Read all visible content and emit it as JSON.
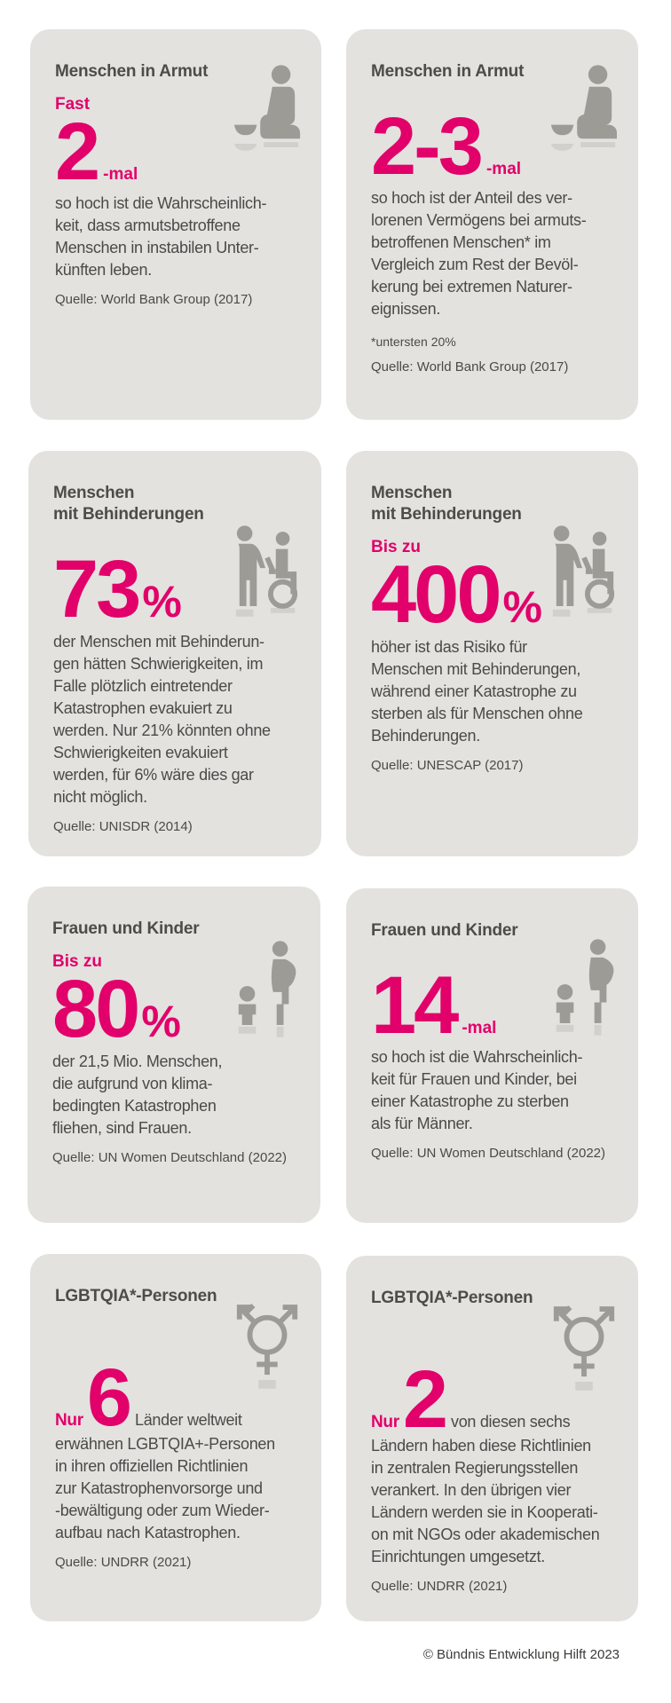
{
  "cards": [
    {
      "title": [
        "Menschen in Armut"
      ],
      "prefix": "Fast",
      "number": "2",
      "unit": "-mal",
      "body": [
        "so hoch ist die Wahrscheinlich-",
        "keit, dass armutsbetroffene",
        "Menschen in instabilen Unter-",
        "künften leben."
      ],
      "source": "Quelle: World Bank Group (2017)"
    },
    {
      "title": [
        "Menschen in Armut"
      ],
      "number": "2-3",
      "unit": "-mal",
      "body": [
        "so hoch ist der Anteil des ver-",
        "lorenen Vermögens bei armuts-",
        "betroffenen Menschen* im",
        "Vergleich zum Rest der Bevöl-",
        "kerung bei extremen Naturer-",
        "eignissen."
      ],
      "note": "*untersten 20%",
      "source": "Quelle: World Bank Group (2017)"
    },
    {
      "title": [
        "Menschen",
        "mit Behinderungen"
      ],
      "number": "73",
      "unit": "%",
      "body": [
        "der Menschen mit Behinderun-",
        "gen hätten Schwierigkeiten, im",
        "Falle plötzlich eintretender",
        "Katastrophen evakuiert zu",
        "werden. Nur 21% könnten ohne",
        "Schwierigkeiten evakuiert",
        "werden, für 6% wäre dies gar",
        "nicht möglich."
      ],
      "source": "Quelle: UNISDR (2014)"
    },
    {
      "title": [
        "Menschen",
        "mit Behinderungen"
      ],
      "prefix": "Bis zu",
      "number": "400",
      "unit": "%",
      "body": [
        "höher ist das Risiko für",
        "Menschen mit Behinderungen,",
        "während einer Katastrophe zu",
        "sterben als für Menschen ohne",
        "Behinderungen."
      ],
      "source": "Quelle: UNESCAP (2017)"
    },
    {
      "title": [
        "Frauen und Kinder"
      ],
      "prefix": "Bis zu",
      "number": "80",
      "unit": "%",
      "body": [
        "der 21,5 Mio. Menschen,",
        "die aufgrund von klima-",
        "bedingten Katastrophen",
        "fliehen, sind Frauen."
      ],
      "source": "Quelle: UN Women Deutschland (2022)"
    },
    {
      "title": [
        "Frauen und Kinder"
      ],
      "number": "14",
      "unit": "-mal",
      "body": [
        "so hoch ist die Wahrscheinlich-",
        "keit für Frauen und Kinder, bei",
        "einer Katastrophe zu sterben",
        "als für Männer."
      ],
      "source": "Quelle: UN Women Deutschland (2022)"
    },
    {
      "title": [
        "LGBTQIA*-Personen"
      ],
      "prefix": "Nur",
      "number": "6",
      "body": [
        "Länder weltweit",
        "erwähnen LGBTQIA+-Personen",
        "in ihren offiziellen Richtlinien",
        "zur Katastrophenvorsorge und",
        "-bewältigung oder zum Wieder-",
        "aufbau nach Katastrophen."
      ],
      "source": "Quelle: UNDRR (2021)"
    },
    {
      "title": [
        "LGBTQIA*-Personen"
      ],
      "prefix": "Nur",
      "number": "2",
      "body": [
        "von diesen sechs",
        "Ländern haben diese Richtlinien",
        "in zentralen Regierungsstellen",
        "verankert. In den übrigen vier",
        "Ländern werden sie in Kooperati-",
        "on mit NGOs oder akademischen",
        "Einrichtungen umgesetzt."
      ],
      "source": "Quelle: UNDRR (2021)"
    }
  ],
  "footer": "© Bündnis Entwicklung Hilft 2023"
}
